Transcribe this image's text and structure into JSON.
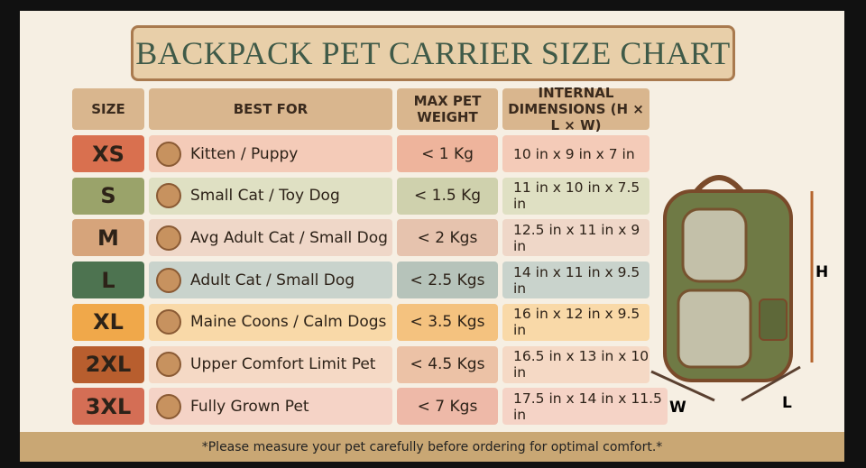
{
  "header": {
    "title": "BACKPACK PET CARRIER SIZE CHART"
  },
  "table": {
    "columns": [
      "SIZE",
      "BEST FOR",
      "MAX PET WEIGHT",
      "INTERNAL DIMENSIONS (H × L × W)"
    ],
    "rows": [
      [
        "XS",
        "Kitten / Puppy",
        "< 1 Kg",
        "10 in x 9 in x 7 in"
      ],
      [
        "S",
        "Small Cat / Toy Dog",
        "< 1.5 Kg",
        "11 in x 10 in x 7.5 in"
      ],
      [
        "M",
        "Avg Adult Cat / Small Dog",
        "< 2 Kgs",
        "12.5 in x 11 in x 9 in"
      ],
      [
        "L",
        "Adult Cat / Small Dog",
        "< 2.5 Kgs",
        "14 in x 11 in x 9.5 in"
      ],
      [
        "XL",
        "Maine Coons / Calm Dogs",
        "< 3.5 Kgs",
        "16 in x 12 in x 9.5 in"
      ],
      [
        "2XL",
        "Upper Comfort Limit Pet",
        "< 4.5 Kgs",
        "16.5 in x 13 in x 10 in"
      ],
      [
        "3XL",
        "Fully Grown Pet",
        "< 7 Kgs",
        "17.5 in x 14 in x 11.5 in"
      ]
    ]
  },
  "diagram": {
    "labels": [
      "H",
      "W",
      "L"
    ]
  },
  "footer": {
    "note": "*Please measure your pet carefully before ordering for optimal comfort.*"
  }
}
